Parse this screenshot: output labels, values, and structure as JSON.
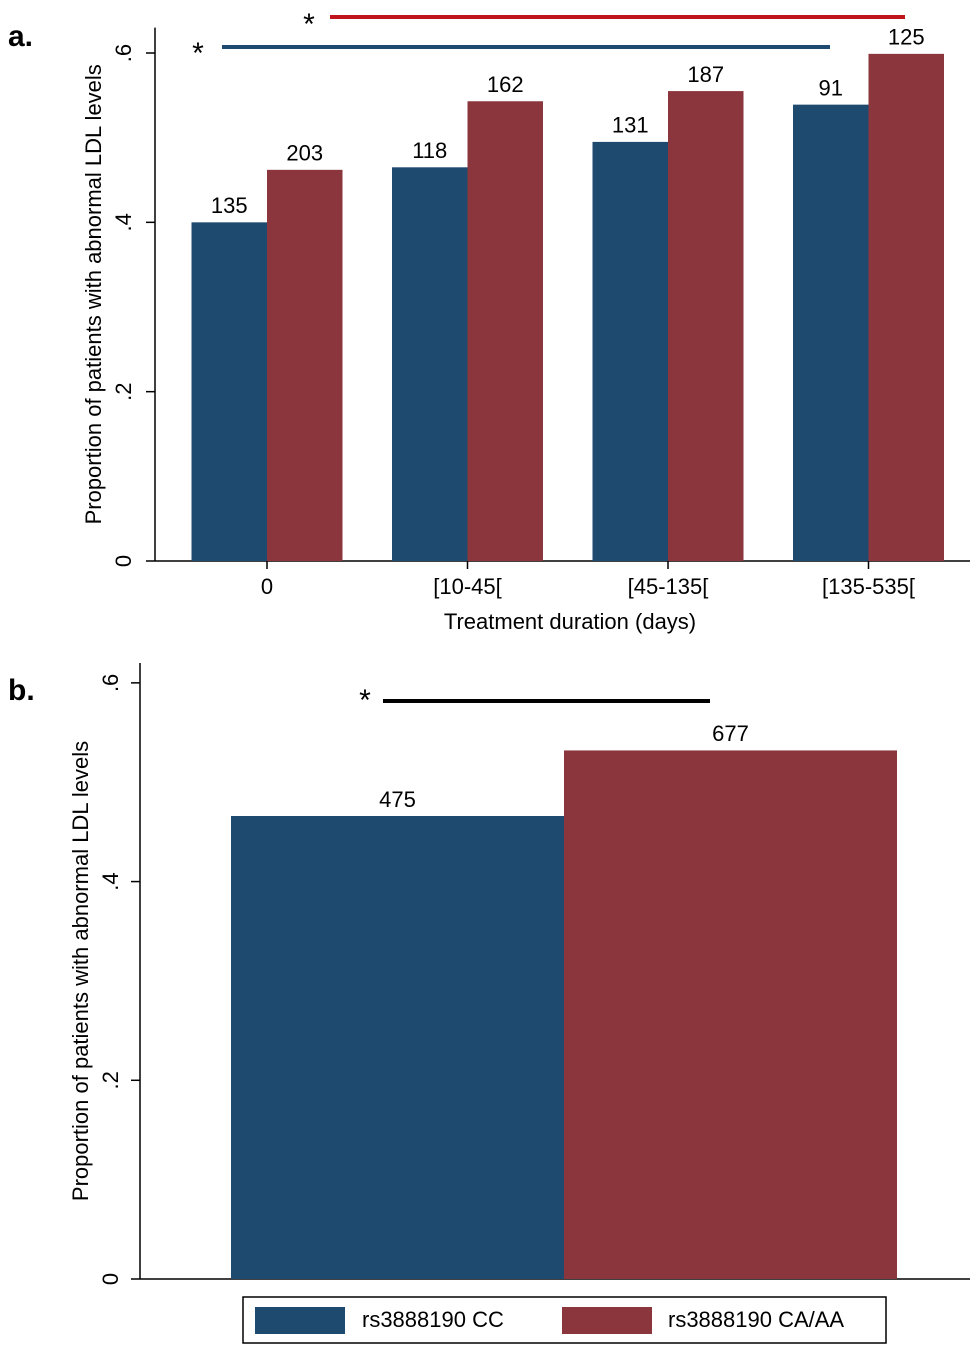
{
  "chart_data": [
    {
      "type": "bar",
      "panel": "a.",
      "y_label": "Proportion of patients with abnormal LDL levels",
      "x_label": "Treatment duration (days)",
      "categories": [
        "0",
        "[10-45[",
        "[45-135[",
        "[135-535["
      ],
      "series": [
        {
          "color": "#1f4a70",
          "values": [
            0.4,
            0.465,
            0.495,
            0.539
          ],
          "labels": [
            "135",
            "118",
            "131",
            "91"
          ]
        },
        {
          "color": "#8b353d",
          "values": [
            0.462,
            0.543,
            0.555,
            0.599
          ],
          "labels": [
            "203",
            "162",
            "187",
            "125"
          ]
        }
      ],
      "ylim": [
        0,
        0.63
      ],
      "yticks": [
        0,
        {
          "value": 0.2,
          "label": ".2"
        },
        {
          "value": 0.4,
          "label": ".4"
        },
        {
          "value": 0.6,
          "label": ".6"
        }
      ],
      "annotations": [
        {
          "text": "*",
          "color": "#1f4a70"
        },
        {
          "text": "*",
          "color": "#c0141c"
        }
      ]
    },
    {
      "type": "bar",
      "panel": "b.",
      "y_label": "Proportion of patients with abnormal LDL levels",
      "categories": [
        null
      ],
      "series": [
        {
          "name": "rs3888190 CC",
          "color": "#1f4a70",
          "values": [
            0.466
          ],
          "labels": [
            "475"
          ]
        },
        {
          "name": "rs3888190 CA/AA",
          "color": "#8b353d",
          "values": [
            0.532
          ],
          "labels": [
            "677"
          ]
        }
      ],
      "ylim": [
        0,
        0.62
      ],
      "yticks": [
        0,
        {
          "value": 0.2,
          "label": ".2"
        },
        {
          "value": 0.4,
          "label": ".4"
        },
        {
          "value": 0.6,
          "label": ".6"
        }
      ],
      "annotations": [
        {
          "text": "*",
          "color": "#1f4a70"
        }
      ]
    }
  ]
}
